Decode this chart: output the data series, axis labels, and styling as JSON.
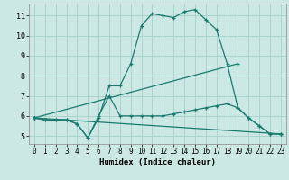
{
  "title": "",
  "xlabel": "Humidex (Indice chaleur)",
  "bg_color": "#cce8e4",
  "grid_color": "#aad4ce",
  "line_color": "#1a7a6e",
  "xlim": [
    -0.5,
    23.5
  ],
  "ylim": [
    4.6,
    11.6
  ],
  "yticks": [
    5,
    6,
    7,
    8,
    9,
    10,
    11
  ],
  "xticks": [
    0,
    1,
    2,
    3,
    4,
    5,
    6,
    7,
    8,
    9,
    10,
    11,
    12,
    13,
    14,
    15,
    16,
    17,
    18,
    19,
    20,
    21,
    22,
    23
  ],
  "line1_x": [
    0,
    1,
    2,
    3,
    4,
    5,
    6,
    7,
    8,
    9,
    10,
    11,
    12,
    13,
    14,
    15,
    16,
    17,
    18,
    19,
    20,
    21,
    22,
    23
  ],
  "line1_y": [
    5.9,
    5.8,
    5.8,
    5.8,
    5.6,
    4.9,
    5.9,
    7.5,
    7.5,
    8.6,
    10.5,
    11.1,
    11.0,
    10.9,
    11.2,
    11.3,
    10.8,
    10.3,
    8.6,
    6.4,
    5.9,
    5.5,
    5.1,
    5.1
  ],
  "line2_x": [
    0,
    1,
    2,
    3,
    4,
    5,
    6,
    7,
    8,
    9,
    10,
    11,
    12,
    13,
    14,
    15,
    16,
    17,
    18,
    19,
    20,
    21,
    22,
    23
  ],
  "line2_y": [
    5.9,
    5.8,
    5.8,
    5.8,
    5.6,
    4.9,
    6.0,
    7.0,
    6.0,
    6.0,
    6.0,
    6.0,
    6.0,
    6.1,
    6.2,
    6.3,
    6.4,
    6.5,
    6.6,
    6.4,
    5.9,
    5.5,
    5.1,
    5.1
  ],
  "line3_x": [
    0,
    19
  ],
  "line3_y": [
    5.9,
    8.6
  ],
  "line4_x": [
    0,
    23
  ],
  "line4_y": [
    5.9,
    5.1
  ]
}
